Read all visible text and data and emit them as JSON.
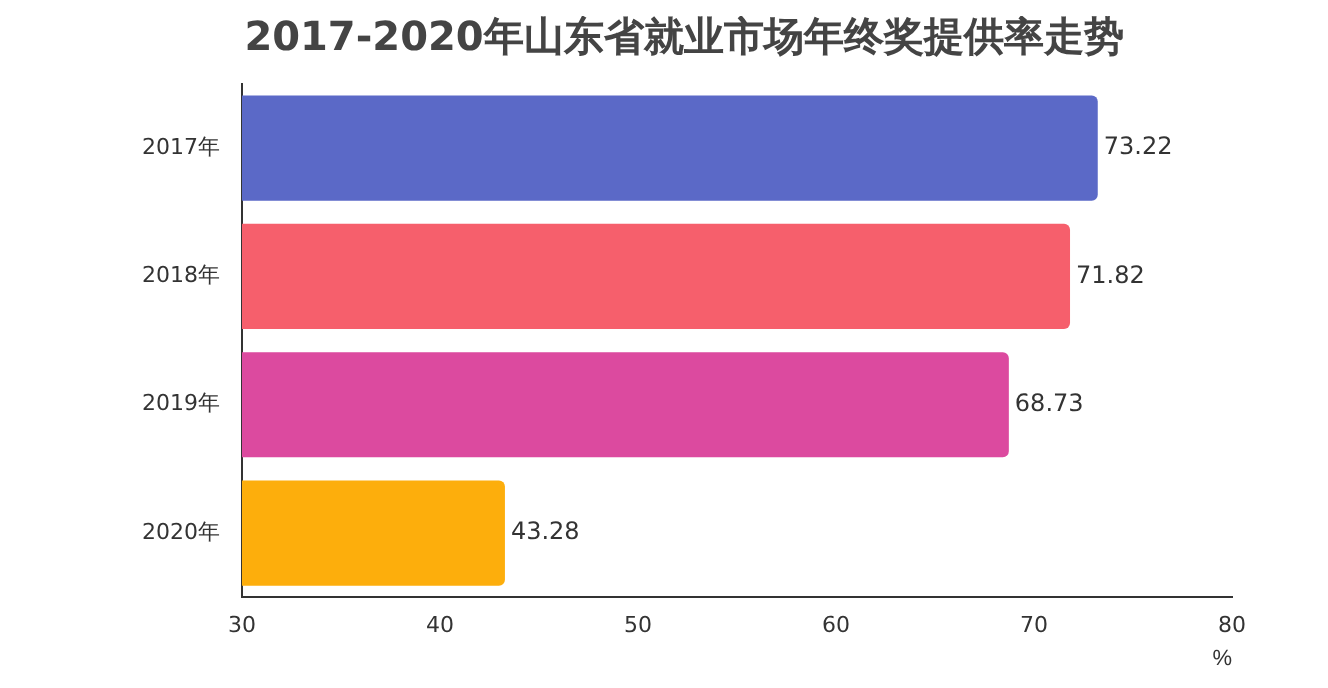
{
  "chart_data": {
    "type": "bar",
    "orientation": "horizontal",
    "title": "2017-2020年山东省就业市场年终奖提供率走势",
    "categories": [
      "2017年",
      "2018年",
      "2019年",
      "2020年"
    ],
    "values": [
      73.22,
      71.82,
      68.73,
      43.28
    ],
    "colors": [
      "#5b69c7",
      "#f65f6c",
      "#dc4a9f",
      "#fdae0c"
    ],
    "xlabel": "%",
    "xlim": [
      30,
      80
    ],
    "xticks": [
      30,
      40,
      50,
      60,
      70,
      80
    ],
    "grid": false,
    "legend": false,
    "data_labels": true
  }
}
